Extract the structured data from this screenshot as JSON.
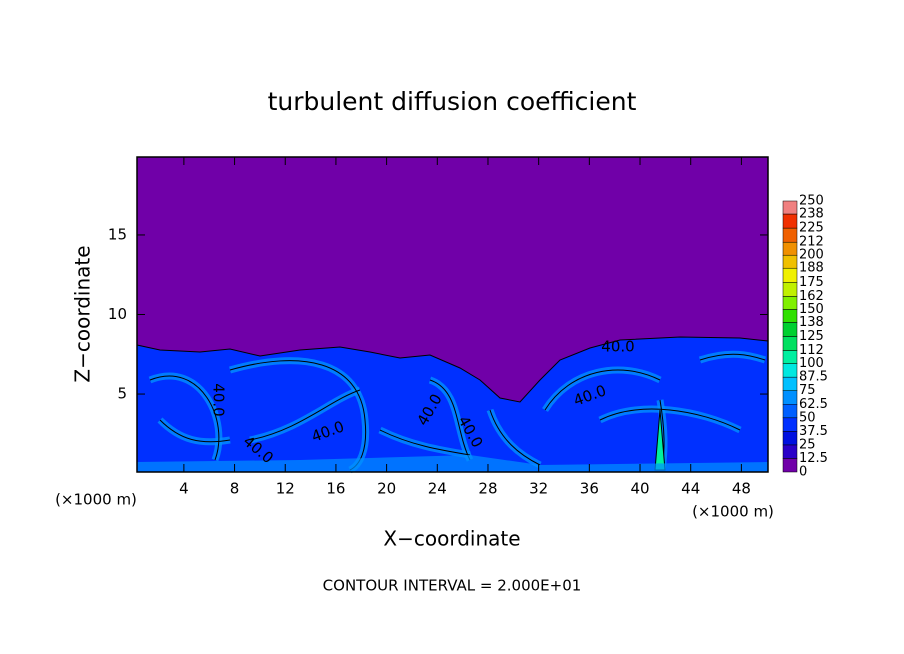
{
  "chart_data": {
    "type": "contour",
    "title": "turbulent diffusion coefficient",
    "x_label": "X−coordinate",
    "y_label": "Z−coordinate",
    "x_unit": "(×1000 m)",
    "y_unit": "(×1000 m)",
    "xlim": [
      0.3,
      50.1
    ],
    "ylim": [
      0.1,
      19.9
    ],
    "xticks": [
      4,
      8,
      12,
      16,
      20,
      24,
      28,
      32,
      36,
      40,
      44,
      48
    ],
    "yticks": [
      5,
      10,
      15
    ],
    "contour_label": "40.0",
    "footnote": "CONTOUR INTERVAL = 2.000E+01",
    "colorbar": {
      "levels": [
        0,
        12.5,
        25,
        37.5,
        50,
        62.5,
        75,
        87.5,
        100,
        112,
        125,
        138,
        150,
        162,
        175,
        188,
        200,
        212,
        225,
        238,
        250
      ],
      "colors": [
        "#7000a8",
        "#2a00c8",
        "#0010e0",
        "#0030ff",
        "#0060ff",
        "#0090ff",
        "#00c0ff",
        "#00e8e0",
        "#00f0a0",
        "#00e060",
        "#00d030",
        "#30e000",
        "#80f000",
        "#c0f000",
        "#f0f000",
        "#f0c000",
        "#f09000",
        "#f06000",
        "#f03000",
        "#f08080"
      ]
    }
  }
}
